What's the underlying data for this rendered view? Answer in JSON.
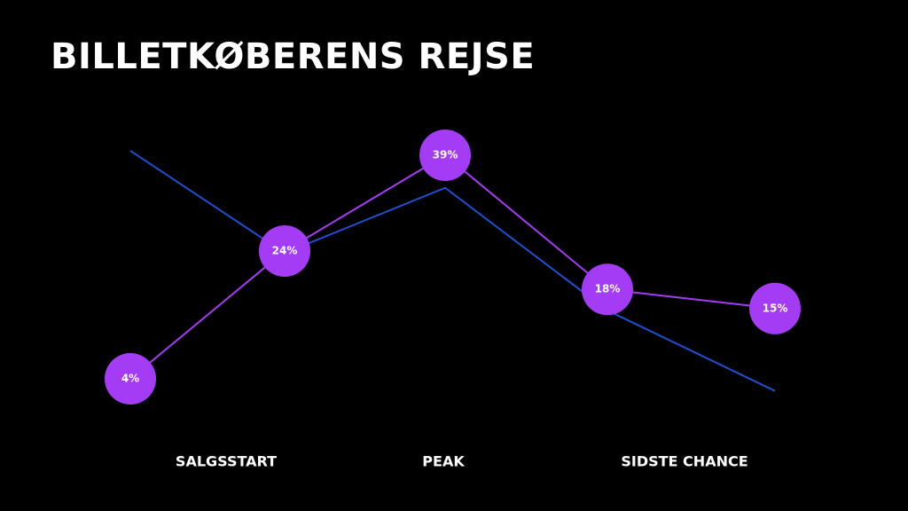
{
  "chart_data": {
    "type": "line",
    "title": "BILLETKØBERENS REJSE",
    "phases": [
      "SALGSSTART",
      "PEAK",
      "SIDSTE CHANCE"
    ],
    "ylim": [
      0,
      45
    ],
    "series": [
      {
        "color": "#1f4fd1",
        "values": [
          39.7,
          23.7,
          33.9,
          14.7,
          2.1
        ]
      },
      {
        "color": "#a43cf5",
        "values": [
          4,
          24,
          39,
          18,
          15
        ],
        "value_labels": [
          "4%",
          "24%",
          "39%",
          "18%",
          "15%"
        ]
      }
    ]
  }
}
